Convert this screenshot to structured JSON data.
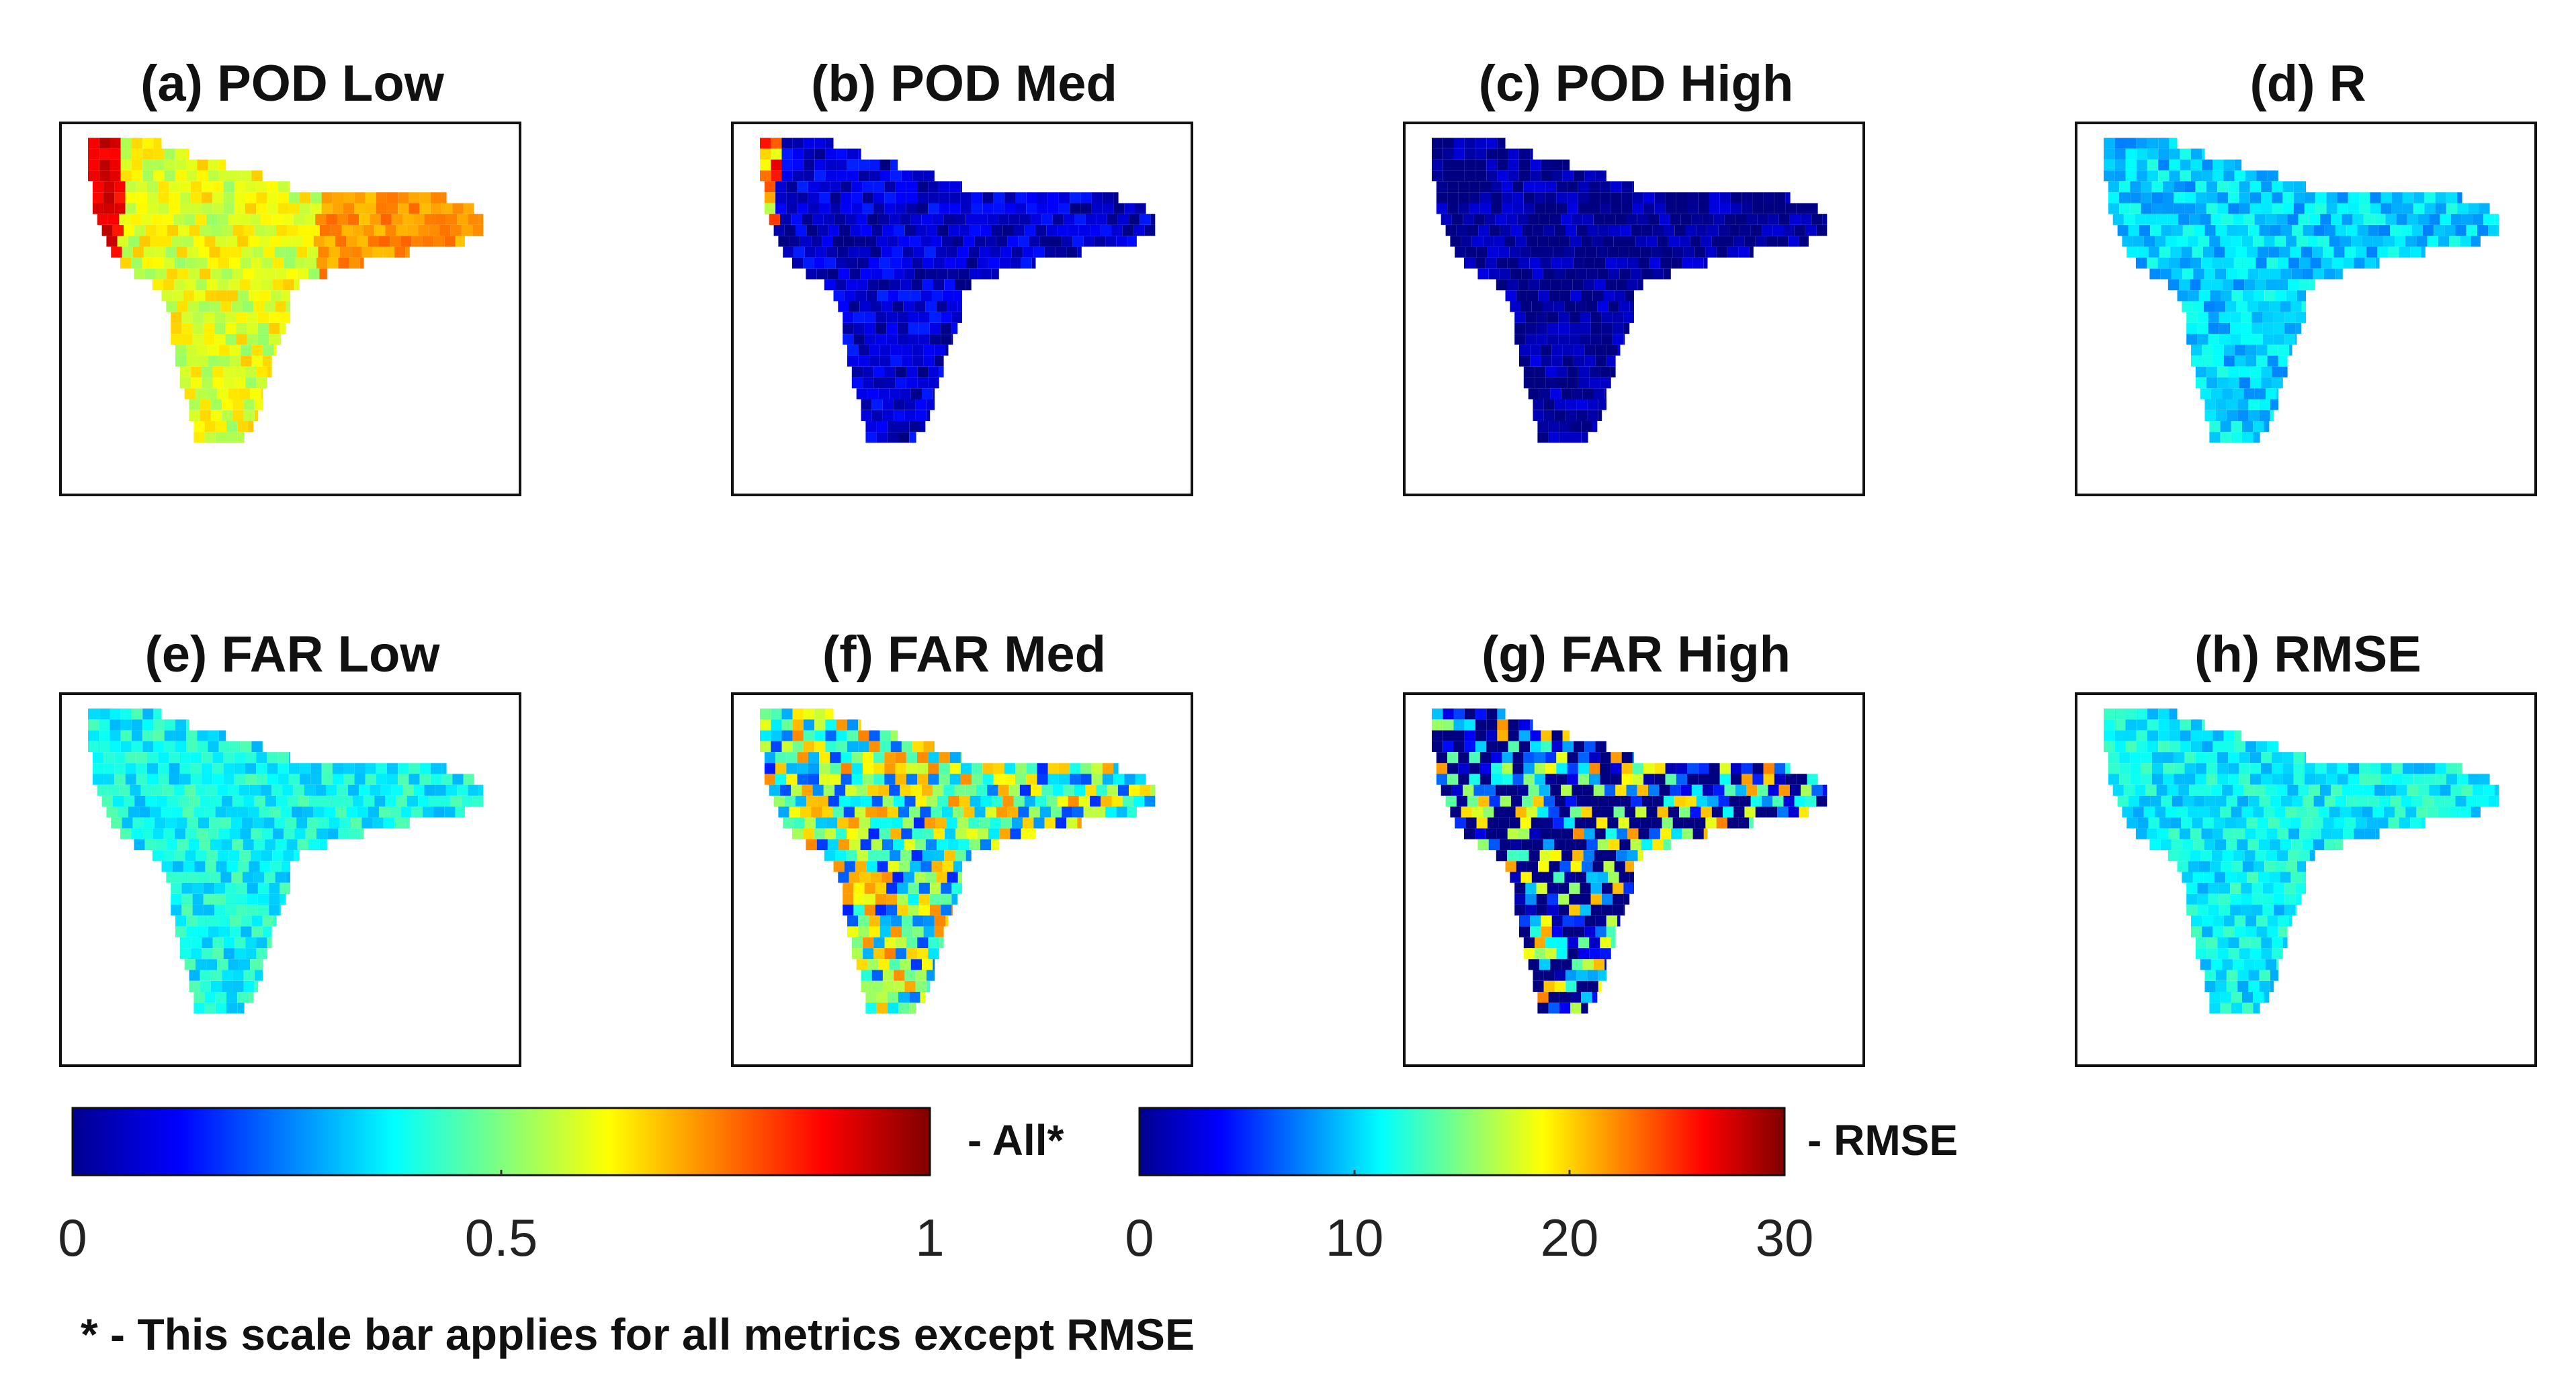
{
  "chart_data": [
    {
      "type": "heatmap",
      "panel": "a",
      "title": "(a) POD Low",
      "metric": "POD",
      "threshold": "Low",
      "scale": "All",
      "typical_value": 0.6
    },
    {
      "type": "heatmap",
      "panel": "b",
      "title": "(b) POD Med",
      "metric": "POD",
      "threshold": "Med",
      "scale": "All",
      "typical_value": 0.08
    },
    {
      "type": "heatmap",
      "panel": "c",
      "title": "(c) POD High",
      "metric": "POD",
      "threshold": "High",
      "scale": "All",
      "typical_value": 0.02
    },
    {
      "type": "heatmap",
      "panel": "d",
      "title": "(d) R",
      "metric": "R",
      "threshold": "",
      "scale": "All",
      "typical_value": 0.33
    },
    {
      "type": "heatmap",
      "panel": "e",
      "title": "(e) FAR Low",
      "metric": "FAR",
      "threshold": "Low",
      "scale": "All",
      "typical_value": 0.38
    },
    {
      "type": "heatmap",
      "panel": "f",
      "title": "(f) FAR Med",
      "metric": "FAR",
      "threshold": "Med",
      "scale": "All",
      "typical_value": 0.45
    },
    {
      "type": "heatmap",
      "panel": "g",
      "title": "(g) FAR High",
      "metric": "FAR",
      "threshold": "High",
      "scale": "All",
      "typical_value": 0.2
    },
    {
      "type": "heatmap",
      "panel": "h",
      "title": "(h) RMSE",
      "metric": "RMSE",
      "threshold": "",
      "scale": "RMSE",
      "typical_value": 11
    }
  ],
  "colorbars": {
    "all": {
      "label": "- All*",
      "ticks": [
        "0",
        "0.5",
        "1"
      ],
      "range": [
        0,
        1
      ],
      "colormap": "jet"
    },
    "rmse": {
      "label": "- RMSE",
      "ticks": [
        "0",
        "10",
        "20",
        "30"
      ],
      "range": [
        0,
        30
      ],
      "colormap": "jet"
    }
  },
  "footnote": "* - This scale bar applies for all metrics except RMSE"
}
